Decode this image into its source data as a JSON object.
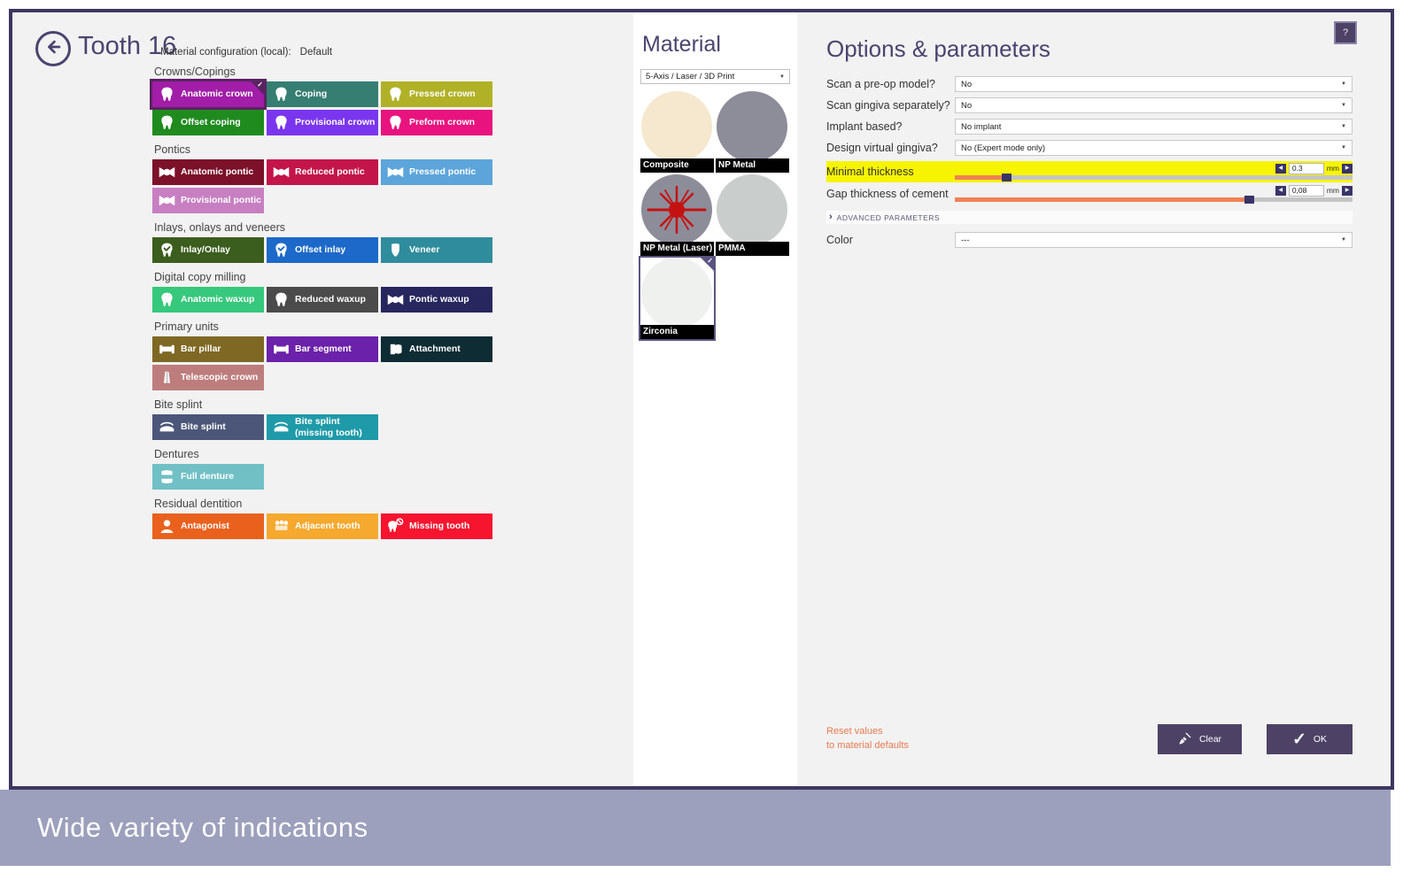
{
  "header": {
    "title": "Tooth 16",
    "subtitle_label": "Material configuration (local):",
    "subtitle_value": "Default",
    "help": "?"
  },
  "indications": {
    "groups": [
      {
        "label": "Crowns/Copings",
        "items": [
          {
            "label": "Anatomic crown",
            "color": "#A21DA8",
            "icon": "tooth",
            "selected": true
          },
          {
            "label": "Coping",
            "color": "#357E71",
            "icon": "tooth"
          },
          {
            "label": "Pressed crown",
            "color": "#B1B128",
            "icon": "tooth"
          },
          {
            "label": "Offset coping",
            "color": "#1F8B1F",
            "icon": "tooth"
          },
          {
            "label": "Provisional crown",
            "color": "#7A36EE",
            "icon": "tooth"
          },
          {
            "label": "Preform crown",
            "color": "#E8137E",
            "icon": "tooth"
          }
        ]
      },
      {
        "label": "Pontics",
        "items": [
          {
            "label": "Anatomic pontic",
            "color": "#7C1129",
            "icon": "pontic"
          },
          {
            "label": "Reduced pontic",
            "color": "#C31549",
            "icon": "pontic"
          },
          {
            "label": "Pressed pontic",
            "color": "#5CA5DB",
            "icon": "pontic"
          },
          {
            "label": "Provisional pontic",
            "color": "#C77FC2",
            "icon": "pontic"
          }
        ]
      },
      {
        "label": "Inlays, onlays and veneers",
        "items": [
          {
            "label": "Inlay/Onlay",
            "color": "#3B5D1D",
            "icon": "inlay"
          },
          {
            "label": "Offset inlay",
            "color": "#1D69C9",
            "icon": "inlay"
          },
          {
            "label": "Veneer",
            "color": "#2F8C9D",
            "icon": "veneer"
          }
        ]
      },
      {
        "label": "Digital copy milling",
        "items": [
          {
            "label": "Anatomic waxup",
            "color": "#36C87B",
            "icon": "tooth"
          },
          {
            "label": "Reduced waxup",
            "color": "#4B4B4B",
            "icon": "tooth"
          },
          {
            "label": "Pontic waxup",
            "color": "#27275F",
            "icon": "pontic"
          }
        ]
      },
      {
        "label": "Primary units",
        "items": [
          {
            "label": "Bar pillar",
            "color": "#7E6823",
            "icon": "bar"
          },
          {
            "label": "Bar segment",
            "color": "#6B21A9",
            "icon": "bar"
          },
          {
            "label": "Attachment",
            "color": "#0E2C34",
            "icon": "attachment"
          },
          {
            "label": "Telescopic crown",
            "color": "#BE7D7D",
            "icon": "telescopic"
          }
        ]
      },
      {
        "label": "Bite splint",
        "items": [
          {
            "label": "Bite splint",
            "color": "#4B5679",
            "icon": "splint"
          },
          {
            "label": "Bite splint\n(missing tooth)",
            "color": "#1E9AA9",
            "icon": "splint"
          }
        ]
      },
      {
        "label": "Dentures",
        "items": [
          {
            "label": "Full denture",
            "color": "#70C0C5",
            "icon": "denture"
          }
        ]
      },
      {
        "label": "Residual dentition",
        "items": [
          {
            "label": "Antagonist",
            "color": "#E9611D",
            "icon": "antagonist"
          },
          {
            "label": "Adjacent tooth",
            "color": "#F6A92F",
            "icon": "adjacent"
          },
          {
            "label": "Missing tooth",
            "color": "#F6142F",
            "icon": "missing"
          }
        ]
      }
    ]
  },
  "material": {
    "title": "Material",
    "machine": "5-Axis / Laser / 3D Print",
    "swatches": [
      {
        "label": "Composite",
        "color": "#F5E8CE"
      },
      {
        "label": "NP Metal",
        "color": "#8D8D9A"
      },
      {
        "label": "NP Metal (Laser)",
        "color": "#8D8D9A",
        "laser": true
      },
      {
        "label": "PMMA",
        "color": "#C9CDCC"
      },
      {
        "label": "Zirconia",
        "color": "#EFF1EF",
        "selected": true
      }
    ]
  },
  "options": {
    "title": "Options & parameters",
    "dropdowns": [
      {
        "label": "Scan a pre-op model?",
        "value": "No"
      },
      {
        "label": "Scan gingiva separately?",
        "value": "No"
      },
      {
        "label": "Implant based?",
        "value": "No implant"
      },
      {
        "label": "Design virtual gingiva?",
        "value": "No (Expert mode only)"
      }
    ],
    "sliders": [
      {
        "label": "Minimal thickness",
        "value": "0.3",
        "unit": "mm",
        "percent": 13,
        "highlighted": true
      },
      {
        "label": "Gap thickness of cement",
        "value": "0,08",
        "unit": "mm",
        "percent": 74,
        "highlighted": false
      }
    ],
    "advanced": "ADVANCED PARAMETERS",
    "color_label": "Color",
    "color_value": "---",
    "reset_line1": "Reset values",
    "reset_line2": "to material defaults",
    "clear": "Clear",
    "ok": "OK"
  },
  "caption": "Wide variety of indications",
  "theme": {
    "frame_border": "#3D3760",
    "heading": "#4A4470",
    "caption_bg": "#9CA0BC",
    "button_bg": "#4D4266",
    "highlight_yellow": "#F7F400",
    "slider_fill": "#F08055",
    "slider_handle": "#383468",
    "link_orange": "#E87A50",
    "tile_selected_border": "#5A2362",
    "swatch_selected_border": "#5C5480"
  }
}
